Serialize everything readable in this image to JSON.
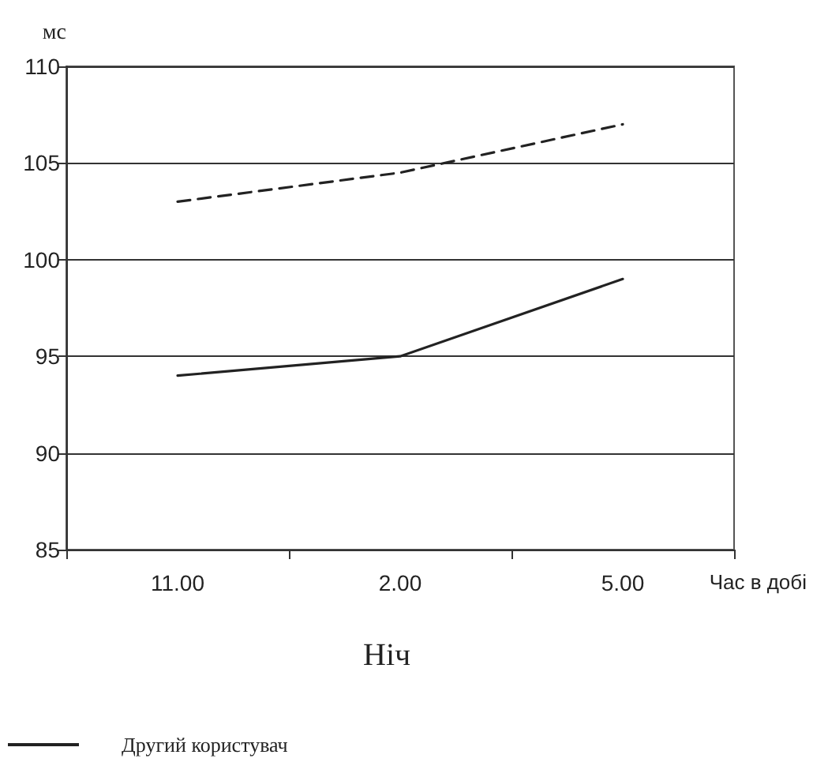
{
  "chart_data": {
    "type": "line",
    "title": "Ніч",
    "xlabel": "Час в добі",
    "ylabel": "мс",
    "categories": [
      "11.00",
      "2.00",
      "5.00"
    ],
    "series": [
      {
        "color": "#222222",
        "line_style": "dashed",
        "values": [
          103,
          104.5,
          107
        ]
      },
      {
        "name": "Другий користувач",
        "color": "#222222",
        "line_style": "solid",
        "values": [
          94,
          95,
          99
        ]
      }
    ],
    "ylim": [
      85,
      110
    ],
    "yticks": [
      85,
      90,
      95,
      100,
      105,
      110
    ],
    "grid": "y",
    "legend": "bottom left",
    "marker": "none"
  }
}
